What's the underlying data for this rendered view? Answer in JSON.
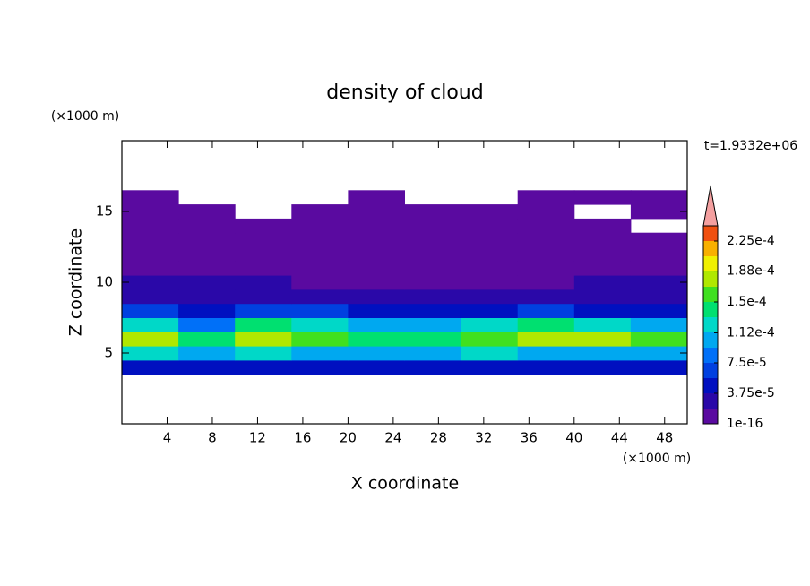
{
  "chart_data": {
    "type": "contour",
    "title": "density of cloud",
    "x_label": "X coordinate",
    "y_label": "Z coordinate",
    "x_unit": "(×1000 m)",
    "y_unit": "(×1000 m)",
    "time_label": "t=1.9332e+06",
    "xlim": [
      0,
      50
    ],
    "ylim": [
      0,
      20
    ],
    "xticks": [
      4,
      8,
      12,
      16,
      20,
      24,
      28,
      32,
      36,
      40,
      44,
      48
    ],
    "yticks": [
      5,
      10,
      15
    ],
    "x": [
      2.5,
      7.5,
      12.5,
      17.5,
      22.5,
      27.5,
      32.5,
      37.5,
      42.5,
      47.5
    ],
    "y": [
      4,
      5,
      6,
      7,
      8,
      9,
      10,
      11,
      12,
      13,
      14,
      15,
      16
    ],
    "z": [
      [
        4e-05,
        4e-05,
        5e-05,
        5e-05,
        5e-05,
        4e-05,
        5e-05,
        5e-05,
        4e-05,
        5e-05
      ],
      [
        0.00012,
        0.0001,
        0.00012,
        0.00011,
        0.0001,
        0.00011,
        0.00012,
        0.00011,
        0.0001,
        0.00011
      ],
      [
        0.00018,
        0.00014,
        0.00018,
        0.00016,
        0.00015,
        0.00014,
        0.00016,
        0.00017,
        0.00018,
        0.00016
      ],
      [
        0.00013,
        9e-05,
        0.00015,
        0.00013,
        0.00011,
        0.0001,
        0.00012,
        0.00014,
        0.00013,
        0.00011
      ],
      [
        6e-05,
        5e-05,
        6e-05,
        6e-05,
        5e-05,
        5e-05,
        5e-05,
        7e-05,
        5e-05,
        5e-05
      ],
      [
        3e-05,
        3e-05,
        3e-05,
        3e-05,
        2e-05,
        2e-05,
        3e-05,
        3e-05,
        3e-05,
        3e-05
      ],
      [
        2e-05,
        2e-05,
        2e-05,
        1.5e-05,
        1.5e-05,
        1.5e-05,
        1e-05,
        1.5e-05,
        2e-05,
        2e-05
      ],
      [
        1e-05,
        1e-05,
        1e-05,
        1e-05,
        1e-05,
        1e-05,
        1e-05,
        1e-05,
        1e-05,
        1e-05
      ],
      [
        5e-06,
        5e-06,
        5e-06,
        5e-06,
        5e-06,
        5e-06,
        5e-06,
        5e-06,
        5e-06,
        5e-06
      ],
      [
        3e-06,
        3e-06,
        3e-06,
        3e-06,
        3e-06,
        3e-06,
        3e-06,
        3e-06,
        3e-06,
        3e-06
      ],
      [
        2e-06,
        2e-06,
        2e-06,
        2e-06,
        2e-06,
        2e-06,
        2e-06,
        2e-06,
        2e-06,
        null
      ],
      [
        1e-06,
        1e-06,
        null,
        1e-06,
        1e-06,
        1e-06,
        1e-06,
        1e-06,
        null,
        1e-06
      ],
      [
        1e-06,
        null,
        null,
        null,
        1e-06,
        null,
        null,
        1e-06,
        1e-06,
        1e-06
      ]
    ],
    "clim": [
      1e-16,
      0.00024375
    ],
    "colors": [
      "#5a0aa0",
      "#2a08a8",
      "#0010c0",
      "#0040e0",
      "#0070f8",
      "#00a8f0",
      "#00d8c8",
      "#00e070",
      "#40e020",
      "#b0e800",
      "#f0f000",
      "#f8b000",
      "#f05010"
    ],
    "over_color": "#f4a0a0",
    "levels": [
      {
        "value": 1e-16,
        "label": "1e-16"
      },
      {
        "value": 3.75e-05,
        "label": "3.75e-5"
      },
      {
        "value": 7.5e-05,
        "label": "7.5e-5"
      },
      {
        "value": 0.000112,
        "label": "1.12e-4"
      },
      {
        "value": 0.00015,
        "label": "1.5e-4"
      },
      {
        "value": 0.000188,
        "label": "1.88e-4"
      },
      {
        "value": 0.000225,
        "label": "2.25e-4"
      }
    ]
  }
}
